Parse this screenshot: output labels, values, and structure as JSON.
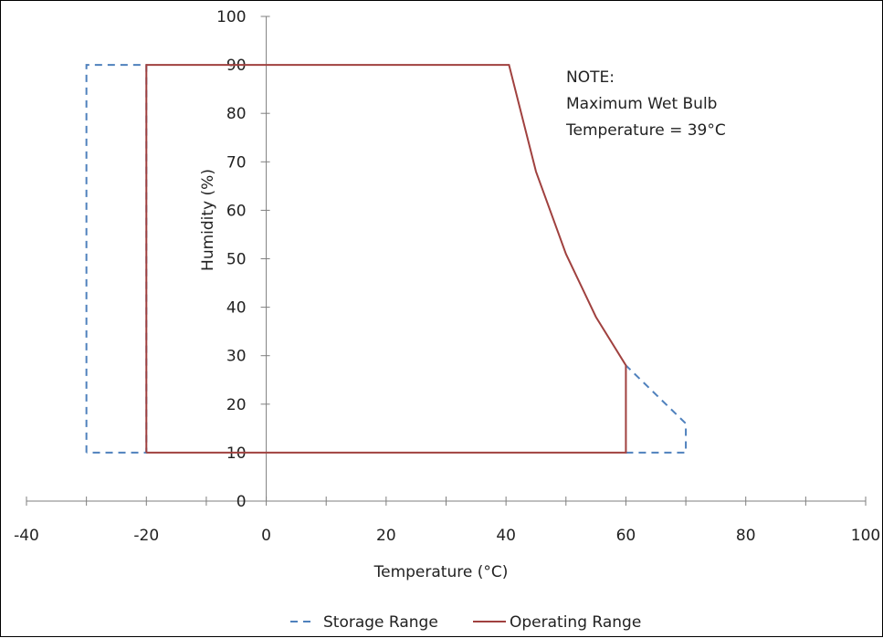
{
  "chart_data": {
    "type": "line",
    "xlabel": "Temperature (°C)",
    "ylabel": "Humidity (%)",
    "xlim": [
      -40,
      100
    ],
    "ylim": [
      0,
      100
    ],
    "x_ticks": [
      -40,
      -20,
      0,
      20,
      40,
      60,
      80,
      100
    ],
    "y_ticks": [
      0,
      10,
      20,
      30,
      40,
      50,
      60,
      70,
      80,
      90,
      100
    ],
    "grid": false,
    "legend": "bottom",
    "series": [
      {
        "name": "Storage Range",
        "style": "dashed",
        "color": "#4f81bd",
        "points": [
          [
            -30,
            10
          ],
          [
            -30,
            90
          ],
          [
            -20,
            90
          ],
          [
            -20,
            10
          ],
          [
            -30,
            10
          ]
        ],
        "extra_paths": [
          [
            [
              60,
              10
            ],
            [
              70,
              10
            ],
            [
              70,
              16
            ],
            [
              60,
              28
            ]
          ]
        ]
      },
      {
        "name": "Operating Range",
        "style": "solid",
        "color": "#a0413f",
        "points": [
          [
            -20,
            10
          ],
          [
            -20,
            90
          ],
          [
            40.5,
            90
          ],
          [
            45,
            68
          ],
          [
            50,
            51
          ],
          [
            55,
            38
          ],
          [
            60,
            28
          ],
          [
            60,
            10
          ],
          [
            -20,
            10
          ]
        ]
      }
    ],
    "annotation": {
      "lines": [
        "NOTE:",
        "Maximum Wet Bulb",
        "Temperature = 39°C"
      ]
    }
  }
}
